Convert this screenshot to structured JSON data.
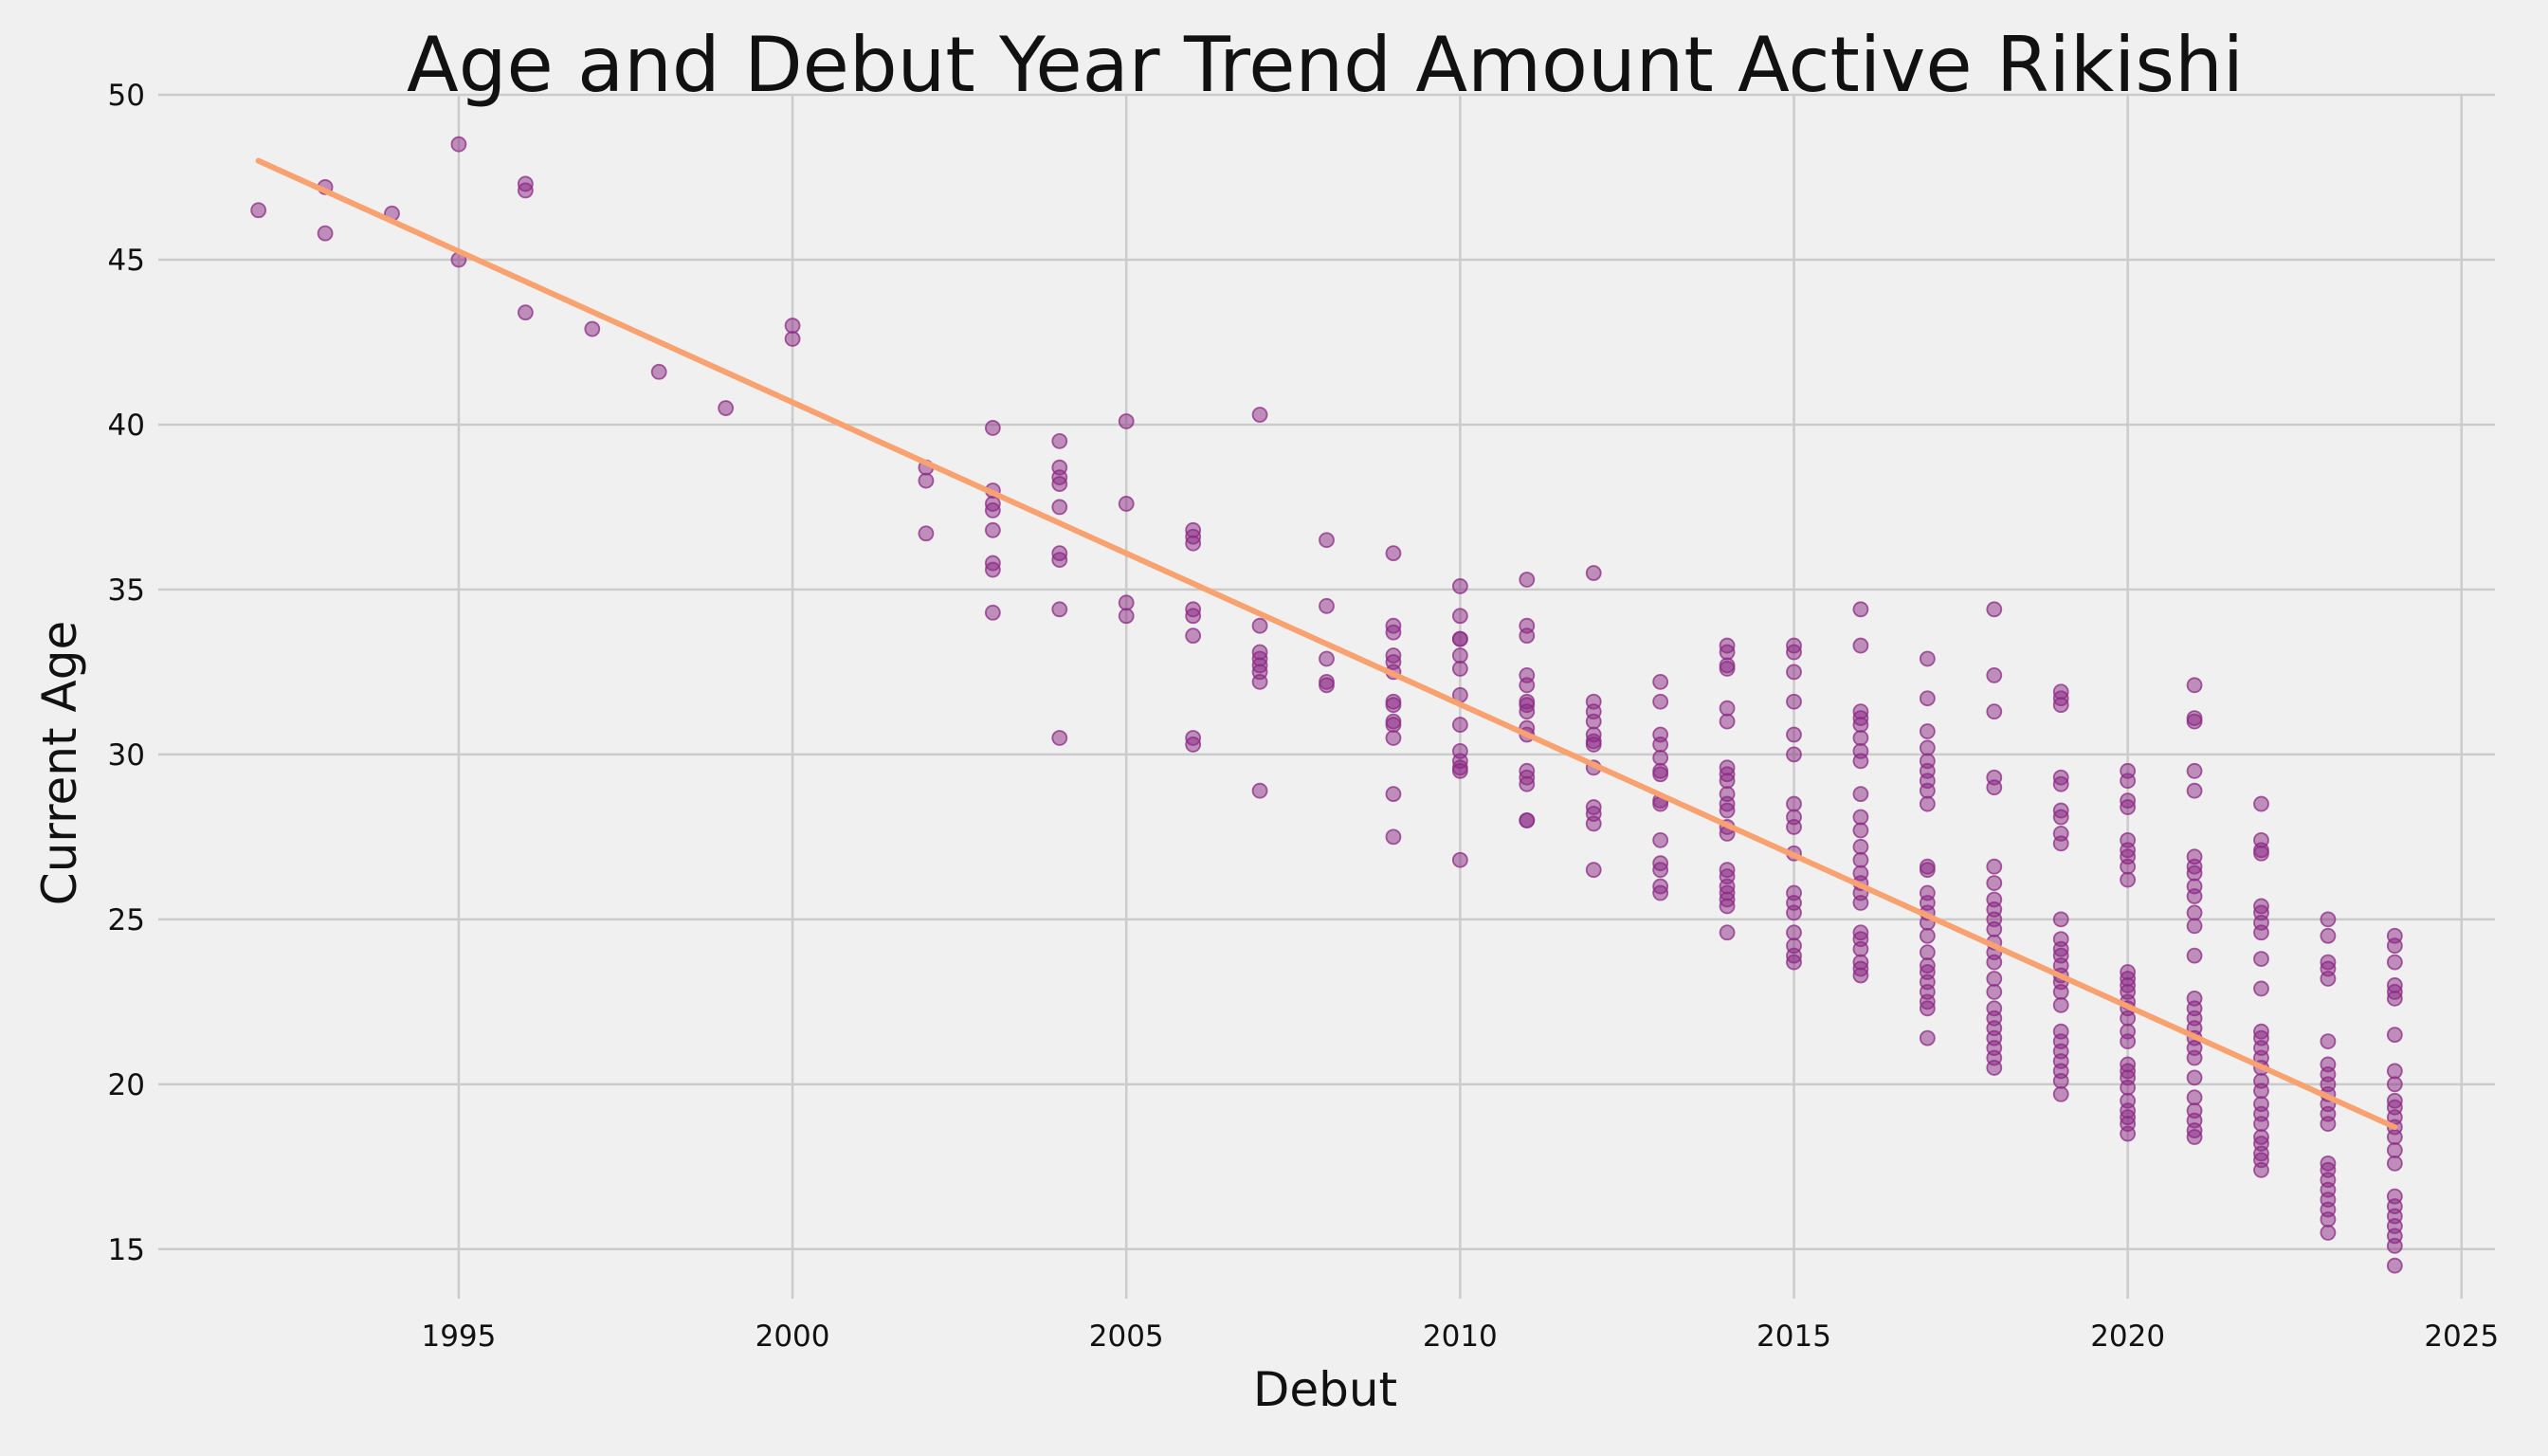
{
  "chart_data": {
    "type": "scatter",
    "title": "Age and Debut Year Trend Amount Active Rikishi",
    "xlabel": "Debut",
    "ylabel": "Current Age",
    "xlim": [
      1990.5,
      2025.5
    ],
    "ylim": [
      13.5,
      50
    ],
    "xticks": [
      1995,
      2000,
      2005,
      2010,
      2015,
      2020,
      2025
    ],
    "yticks": [
      15,
      20,
      25,
      30,
      35,
      40,
      45,
      50
    ],
    "grid": true,
    "point_color": "#8b2a84",
    "trend_color": "#f9a16f",
    "background": "#f0f0f0",
    "trend_line": {
      "x": [
        1992,
        2024
      ],
      "y": [
        48.0,
        18.7
      ]
    },
    "points": [
      [
        1992,
        46.5
      ],
      [
        1993,
        47.2
      ],
      [
        1993,
        45.8
      ],
      [
        1994,
        46.4
      ],
      [
        1995,
        48.5
      ],
      [
        1995,
        45.0
      ],
      [
        1996,
        47.3
      ],
      [
        1996,
        47.1
      ],
      [
        1996,
        43.4
      ],
      [
        1997,
        42.9
      ],
      [
        1998,
        41.6
      ],
      [
        1999,
        40.5
      ],
      [
        2000,
        43.0
      ],
      [
        2000,
        42.6
      ],
      [
        2002,
        38.7
      ],
      [
        2002,
        38.3
      ],
      [
        2002,
        36.7
      ],
      [
        2003,
        39.9
      ],
      [
        2003,
        38.0
      ],
      [
        2003,
        37.6
      ],
      [
        2003,
        37.4
      ],
      [
        2003,
        36.8
      ],
      [
        2003,
        35.8
      ],
      [
        2003,
        35.6
      ],
      [
        2003,
        34.3
      ],
      [
        2004,
        39.5
      ],
      [
        2004,
        38.7
      ],
      [
        2004,
        38.4
      ],
      [
        2004,
        38.2
      ],
      [
        2004,
        37.5
      ],
      [
        2004,
        36.1
      ],
      [
        2004,
        35.9
      ],
      [
        2004,
        34.4
      ],
      [
        2004,
        30.5
      ],
      [
        2005,
        40.1
      ],
      [
        2005,
        37.6
      ],
      [
        2005,
        34.6
      ],
      [
        2005,
        34.2
      ],
      [
        2006,
        36.8
      ],
      [
        2006,
        36.6
      ],
      [
        2006,
        36.4
      ],
      [
        2006,
        34.4
      ],
      [
        2006,
        34.2
      ],
      [
        2006,
        33.6
      ],
      [
        2006,
        30.5
      ],
      [
        2006,
        30.3
      ],
      [
        2007,
        40.3
      ],
      [
        2007,
        33.9
      ],
      [
        2007,
        33.1
      ],
      [
        2007,
        32.9
      ],
      [
        2007,
        32.7
      ],
      [
        2007,
        32.5
      ],
      [
        2007,
        32.2
      ],
      [
        2007,
        28.9
      ],
      [
        2008,
        36.5
      ],
      [
        2008,
        34.5
      ],
      [
        2008,
        32.9
      ],
      [
        2008,
        32.2
      ],
      [
        2008,
        32.1
      ],
      [
        2009,
        36.1
      ],
      [
        2009,
        33.9
      ],
      [
        2009,
        33.7
      ],
      [
        2009,
        33.0
      ],
      [
        2009,
        32.8
      ],
      [
        2009,
        32.5
      ],
      [
        2009,
        31.6
      ],
      [
        2009,
        31.5
      ],
      [
        2009,
        31.0
      ],
      [
        2009,
        30.9
      ],
      [
        2009,
        30.5
      ],
      [
        2009,
        28.8
      ],
      [
        2009,
        27.5
      ],
      [
        2010,
        35.1
      ],
      [
        2010,
        34.2
      ],
      [
        2010,
        33.5
      ],
      [
        2010,
        33.5
      ],
      [
        2010,
        33.0
      ],
      [
        2010,
        32.6
      ],
      [
        2010,
        31.8
      ],
      [
        2010,
        30.9
      ],
      [
        2010,
        30.1
      ],
      [
        2010,
        29.8
      ],
      [
        2010,
        29.6
      ],
      [
        2010,
        29.5
      ],
      [
        2010,
        26.8
      ],
      [
        2011,
        35.3
      ],
      [
        2011,
        33.9
      ],
      [
        2011,
        33.6
      ],
      [
        2011,
        32.4
      ],
      [
        2011,
        32.1
      ],
      [
        2011,
        31.6
      ],
      [
        2011,
        31.5
      ],
      [
        2011,
        31.3
      ],
      [
        2011,
        30.8
      ],
      [
        2011,
        30.6
      ],
      [
        2011,
        29.5
      ],
      [
        2011,
        29.3
      ],
      [
        2011,
        29.1
      ],
      [
        2011,
        28.0
      ],
      [
        2011,
        28.0
      ],
      [
        2012,
        35.5
      ],
      [
        2012,
        31.6
      ],
      [
        2012,
        31.3
      ],
      [
        2012,
        31.0
      ],
      [
        2012,
        30.6
      ],
      [
        2012,
        30.4
      ],
      [
        2012,
        30.3
      ],
      [
        2012,
        29.6
      ],
      [
        2012,
        28.4
      ],
      [
        2012,
        28.2
      ],
      [
        2012,
        27.9
      ],
      [
        2012,
        26.5
      ],
      [
        2013,
        32.2
      ],
      [
        2013,
        31.6
      ],
      [
        2013,
        30.6
      ],
      [
        2013,
        30.3
      ],
      [
        2013,
        29.9
      ],
      [
        2013,
        29.5
      ],
      [
        2013,
        29.4
      ],
      [
        2013,
        28.6
      ],
      [
        2013,
        28.5
      ],
      [
        2013,
        27.4
      ],
      [
        2013,
        26.7
      ],
      [
        2013,
        26.5
      ],
      [
        2013,
        26.0
      ],
      [
        2013,
        25.8
      ],
      [
        2014,
        33.3
      ],
      [
        2014,
        33.1
      ],
      [
        2014,
        32.7
      ],
      [
        2014,
        32.6
      ],
      [
        2014,
        31.4
      ],
      [
        2014,
        31.0
      ],
      [
        2014,
        29.6
      ],
      [
        2014,
        29.4
      ],
      [
        2014,
        29.2
      ],
      [
        2014,
        28.8
      ],
      [
        2014,
        28.5
      ],
      [
        2014,
        28.3
      ],
      [
        2014,
        27.8
      ],
      [
        2014,
        27.6
      ],
      [
        2014,
        26.5
      ],
      [
        2014,
        26.3
      ],
      [
        2014,
        26.0
      ],
      [
        2014,
        25.8
      ],
      [
        2014,
        25.6
      ],
      [
        2014,
        25.4
      ],
      [
        2014,
        24.6
      ],
      [
        2015,
        33.3
      ],
      [
        2015,
        33.1
      ],
      [
        2015,
        32.5
      ],
      [
        2015,
        31.6
      ],
      [
        2015,
        30.6
      ],
      [
        2015,
        30.0
      ],
      [
        2015,
        28.5
      ],
      [
        2015,
        28.1
      ],
      [
        2015,
        27.8
      ],
      [
        2015,
        27.0
      ],
      [
        2015,
        25.8
      ],
      [
        2015,
        25.5
      ],
      [
        2015,
        25.2
      ],
      [
        2015,
        24.6
      ],
      [
        2015,
        24.2
      ],
      [
        2015,
        23.9
      ],
      [
        2015,
        23.7
      ],
      [
        2016,
        34.4
      ],
      [
        2016,
        33.3
      ],
      [
        2016,
        31.3
      ],
      [
        2016,
        31.1
      ],
      [
        2016,
        30.9
      ],
      [
        2016,
        30.5
      ],
      [
        2016,
        30.1
      ],
      [
        2016,
        29.8
      ],
      [
        2016,
        28.8
      ],
      [
        2016,
        28.1
      ],
      [
        2016,
        27.7
      ],
      [
        2016,
        27.2
      ],
      [
        2016,
        26.8
      ],
      [
        2016,
        26.4
      ],
      [
        2016,
        26.1
      ],
      [
        2016,
        25.8
      ],
      [
        2016,
        25.5
      ],
      [
        2016,
        24.6
      ],
      [
        2016,
        24.4
      ],
      [
        2016,
        24.1
      ],
      [
        2016,
        23.7
      ],
      [
        2016,
        23.5
      ],
      [
        2016,
        23.3
      ],
      [
        2017,
        32.9
      ],
      [
        2017,
        31.7
      ],
      [
        2017,
        30.7
      ],
      [
        2017,
        30.2
      ],
      [
        2017,
        29.8
      ],
      [
        2017,
        29.5
      ],
      [
        2017,
        29.2
      ],
      [
        2017,
        28.9
      ],
      [
        2017,
        28.5
      ],
      [
        2017,
        26.6
      ],
      [
        2017,
        26.5
      ],
      [
        2017,
        25.8
      ],
      [
        2017,
        25.5
      ],
      [
        2017,
        25.2
      ],
      [
        2017,
        24.9
      ],
      [
        2017,
        24.5
      ],
      [
        2017,
        24.0
      ],
      [
        2017,
        23.6
      ],
      [
        2017,
        23.4
      ],
      [
        2017,
        23.1
      ],
      [
        2017,
        22.8
      ],
      [
        2017,
        22.5
      ],
      [
        2017,
        22.3
      ],
      [
        2017,
        21.4
      ],
      [
        2018,
        34.4
      ],
      [
        2018,
        32.4
      ],
      [
        2018,
        31.3
      ],
      [
        2018,
        29.3
      ],
      [
        2018,
        29.0
      ],
      [
        2018,
        26.6
      ],
      [
        2018,
        26.1
      ],
      [
        2018,
        25.6
      ],
      [
        2018,
        25.3
      ],
      [
        2018,
        25.0
      ],
      [
        2018,
        24.7
      ],
      [
        2018,
        24.3
      ],
      [
        2018,
        24.0
      ],
      [
        2018,
        23.7
      ],
      [
        2018,
        23.2
      ],
      [
        2018,
        22.8
      ],
      [
        2018,
        22.3
      ],
      [
        2018,
        22.0
      ],
      [
        2018,
        21.7
      ],
      [
        2018,
        21.4
      ],
      [
        2018,
        21.1
      ],
      [
        2018,
        20.8
      ],
      [
        2018,
        20.5
      ],
      [
        2019,
        31.9
      ],
      [
        2019,
        31.7
      ],
      [
        2019,
        31.5
      ],
      [
        2019,
        29.3
      ],
      [
        2019,
        29.1
      ],
      [
        2019,
        28.3
      ],
      [
        2019,
        28.1
      ],
      [
        2019,
        27.6
      ],
      [
        2019,
        27.3
      ],
      [
        2019,
        25.0
      ],
      [
        2019,
        24.4
      ],
      [
        2019,
        24.1
      ],
      [
        2019,
        23.9
      ],
      [
        2019,
        23.6
      ],
      [
        2019,
        23.3
      ],
      [
        2019,
        23.1
      ],
      [
        2019,
        22.8
      ],
      [
        2019,
        22.4
      ],
      [
        2019,
        21.6
      ],
      [
        2019,
        21.3
      ],
      [
        2019,
        21.0
      ],
      [
        2019,
        20.7
      ],
      [
        2019,
        20.4
      ],
      [
        2019,
        20.1
      ],
      [
        2019,
        19.7
      ],
      [
        2020,
        29.5
      ],
      [
        2020,
        29.2
      ],
      [
        2020,
        28.6
      ],
      [
        2020,
        28.4
      ],
      [
        2020,
        27.4
      ],
      [
        2020,
        27.1
      ],
      [
        2020,
        26.9
      ],
      [
        2020,
        26.6
      ],
      [
        2020,
        26.2
      ],
      [
        2020,
        23.4
      ],
      [
        2020,
        23.2
      ],
      [
        2020,
        23.0
      ],
      [
        2020,
        22.8
      ],
      [
        2020,
        22.5
      ],
      [
        2020,
        22.3
      ],
      [
        2020,
        22.0
      ],
      [
        2020,
        21.6
      ],
      [
        2020,
        21.3
      ],
      [
        2020,
        20.6
      ],
      [
        2020,
        20.4
      ],
      [
        2020,
        20.2
      ],
      [
        2020,
        19.9
      ],
      [
        2020,
        19.5
      ],
      [
        2020,
        19.2
      ],
      [
        2020,
        19.0
      ],
      [
        2020,
        18.8
      ],
      [
        2020,
        18.5
      ],
      [
        2021,
        32.1
      ],
      [
        2021,
        31.1
      ],
      [
        2021,
        31.0
      ],
      [
        2021,
        29.5
      ],
      [
        2021,
        28.9
      ],
      [
        2021,
        26.9
      ],
      [
        2021,
        26.6
      ],
      [
        2021,
        26.4
      ],
      [
        2021,
        26.0
      ],
      [
        2021,
        25.7
      ],
      [
        2021,
        25.2
      ],
      [
        2021,
        24.8
      ],
      [
        2021,
        23.9
      ],
      [
        2021,
        22.6
      ],
      [
        2021,
        22.3
      ],
      [
        2021,
        22.0
      ],
      [
        2021,
        21.7
      ],
      [
        2021,
        21.4
      ],
      [
        2021,
        21.1
      ],
      [
        2021,
        20.8
      ],
      [
        2021,
        20.2
      ],
      [
        2021,
        19.6
      ],
      [
        2021,
        19.2
      ],
      [
        2021,
        18.9
      ],
      [
        2021,
        18.6
      ],
      [
        2021,
        18.4
      ],
      [
        2022,
        28.5
      ],
      [
        2022,
        27.4
      ],
      [
        2022,
        27.1
      ],
      [
        2022,
        27.0
      ],
      [
        2022,
        25.4
      ],
      [
        2022,
        25.2
      ],
      [
        2022,
        24.9
      ],
      [
        2022,
        24.6
      ],
      [
        2022,
        23.8
      ],
      [
        2022,
        22.9
      ],
      [
        2022,
        21.6
      ],
      [
        2022,
        21.4
      ],
      [
        2022,
        21.1
      ],
      [
        2022,
        20.8
      ],
      [
        2022,
        20.5
      ],
      [
        2022,
        20.1
      ],
      [
        2022,
        19.8
      ],
      [
        2022,
        19.4
      ],
      [
        2022,
        19.1
      ],
      [
        2022,
        18.8
      ],
      [
        2022,
        18.4
      ],
      [
        2022,
        18.2
      ],
      [
        2022,
        17.9
      ],
      [
        2022,
        17.7
      ],
      [
        2022,
        17.4
      ],
      [
        2023,
        25.0
      ],
      [
        2023,
        24.5
      ],
      [
        2023,
        23.7
      ],
      [
        2023,
        23.5
      ],
      [
        2023,
        23.2
      ],
      [
        2023,
        21.3
      ],
      [
        2023,
        20.6
      ],
      [
        2023,
        20.3
      ],
      [
        2023,
        20.0
      ],
      [
        2023,
        19.7
      ],
      [
        2023,
        19.4
      ],
      [
        2023,
        19.1
      ],
      [
        2023,
        18.8
      ],
      [
        2023,
        17.6
      ],
      [
        2023,
        17.4
      ],
      [
        2023,
        17.1
      ],
      [
        2023,
        16.8
      ],
      [
        2023,
        16.5
      ],
      [
        2023,
        16.2
      ],
      [
        2023,
        15.9
      ],
      [
        2023,
        15.5
      ],
      [
        2024,
        24.5
      ],
      [
        2024,
        24.2
      ],
      [
        2024,
        23.7
      ],
      [
        2024,
        23.0
      ],
      [
        2024,
        22.8
      ],
      [
        2024,
        22.6
      ],
      [
        2024,
        21.5
      ],
      [
        2024,
        20.4
      ],
      [
        2024,
        20.0
      ],
      [
        2024,
        19.5
      ],
      [
        2024,
        19.3
      ],
      [
        2024,
        19.0
      ],
      [
        2024,
        18.7
      ],
      [
        2024,
        18.4
      ],
      [
        2024,
        18.0
      ],
      [
        2024,
        17.6
      ],
      [
        2024,
        16.6
      ],
      [
        2024,
        16.3
      ],
      [
        2024,
        16.0
      ],
      [
        2024,
        15.7
      ],
      [
        2024,
        15.4
      ],
      [
        2024,
        15.1
      ],
      [
        2024,
        14.5
      ]
    ]
  }
}
